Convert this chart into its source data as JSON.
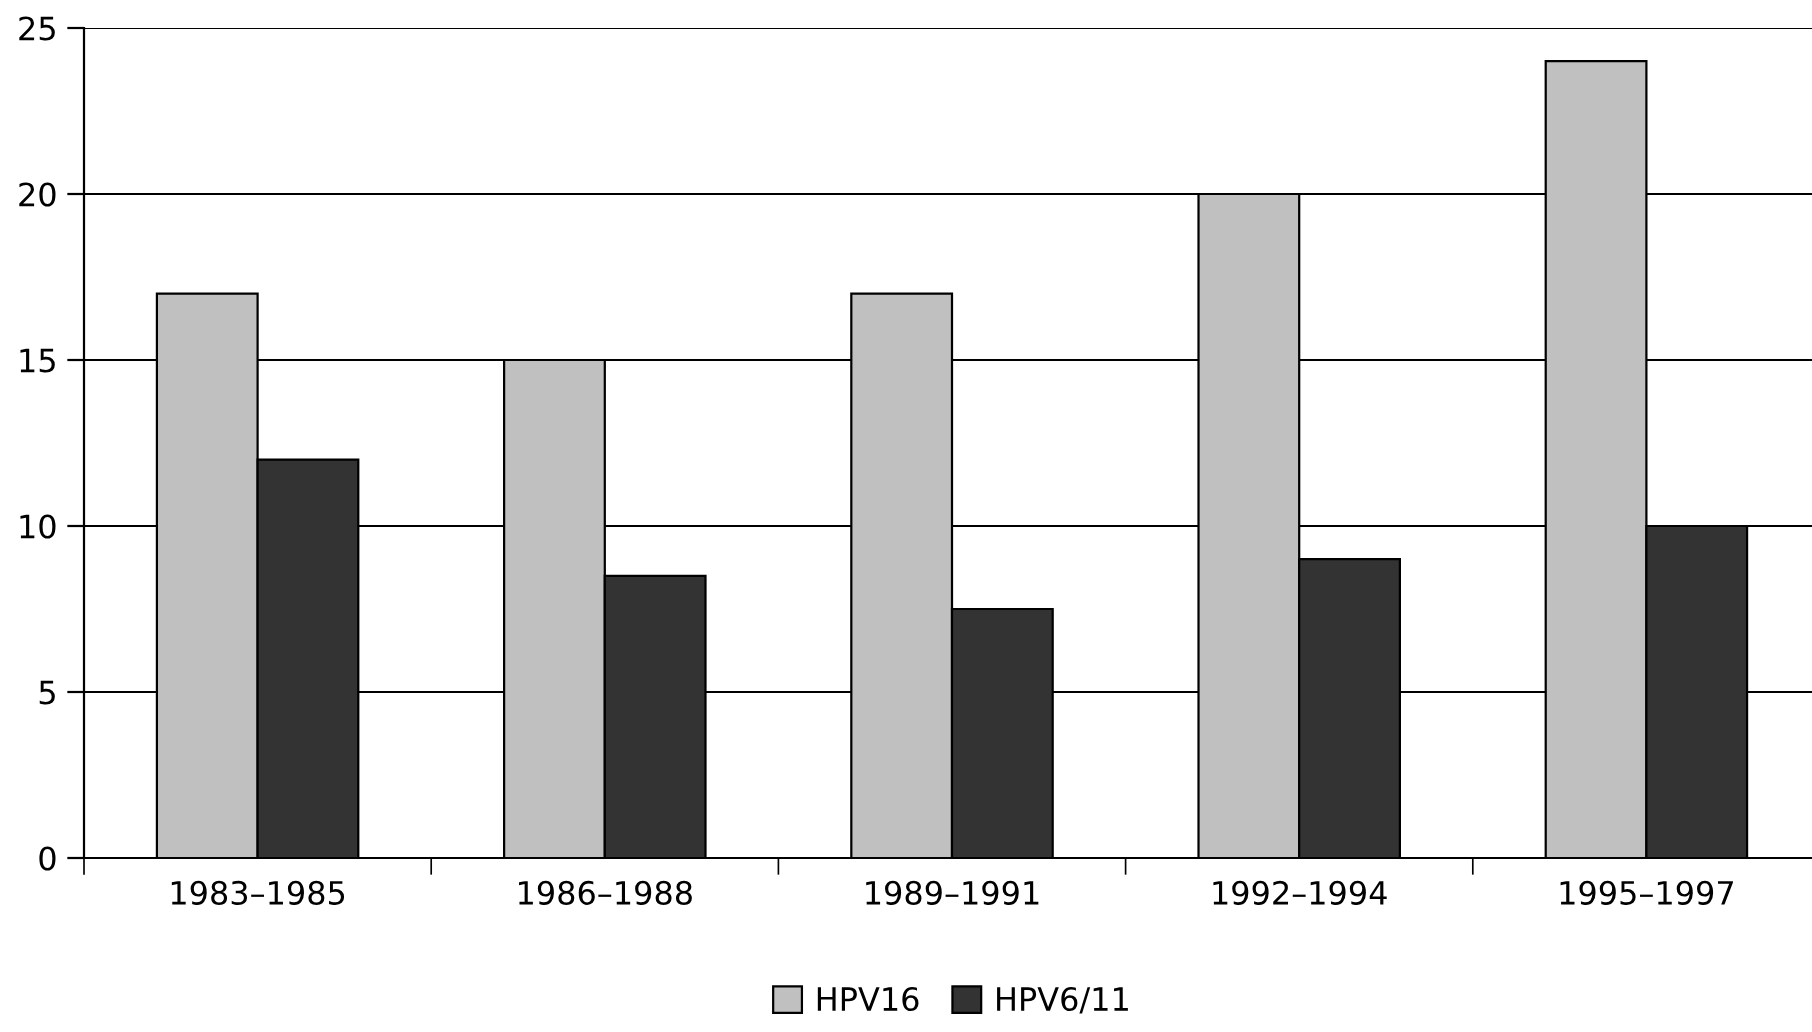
{
  "chart_data": {
    "type": "bar",
    "categories": [
      "1983–1985",
      "1986–1988",
      "1989–1991",
      "1992–1994",
      "1995–1997"
    ],
    "series": [
      {
        "name": "HPV16",
        "color": "#c0c0c0",
        "values": [
          17,
          15,
          17,
          20,
          24
        ]
      },
      {
        "name": "HPV6/11",
        "color": "#333333",
        "values": [
          12,
          8.5,
          7.5,
          9,
          10
        ]
      }
    ],
    "ylim": [
      0,
      25
    ],
    "yticks": [
      0,
      5,
      10,
      15,
      20,
      25
    ],
    "grid": "y",
    "legend": "bottom"
  }
}
